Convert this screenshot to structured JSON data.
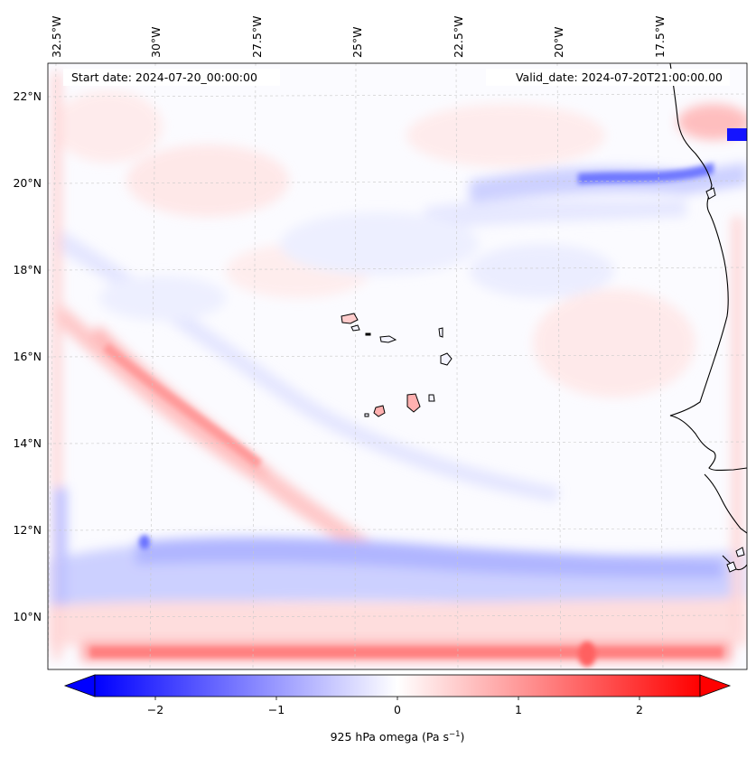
{
  "map": {
    "start_date_label": "Start date: 2024-07-20_00:00:00",
    "valid_date_label": "Valid_date: 2024-07-20T21:00:00.00",
    "lon_labels": [
      "32.5°W",
      "30°W",
      "27.5°W",
      "25°W",
      "22.5°W",
      "20°W",
      "17.5°W"
    ],
    "lat_labels": [
      "22°N",
      "20°N",
      "18°N",
      "16°N",
      "14°N",
      "12°N",
      "10°N"
    ],
    "field": "925 hPa omega",
    "colormap": "bwr",
    "colors": {
      "negative": "#0000ff",
      "neutral": "#ffffff",
      "positive": "#ff0000",
      "coastline": "#000000",
      "gridline": "#c8c8c8"
    }
  },
  "colorbar": {
    "label_prefix": "925 hPa omega (Pa s",
    "label_exponent": "−1",
    "label_suffix": ")",
    "ticks": [
      "−2",
      "−1",
      "0",
      "1",
      "2"
    ],
    "tick_values": [
      -2,
      -1,
      0,
      1,
      2
    ],
    "range": [
      -2.5,
      2.5
    ],
    "extend": "both"
  }
}
